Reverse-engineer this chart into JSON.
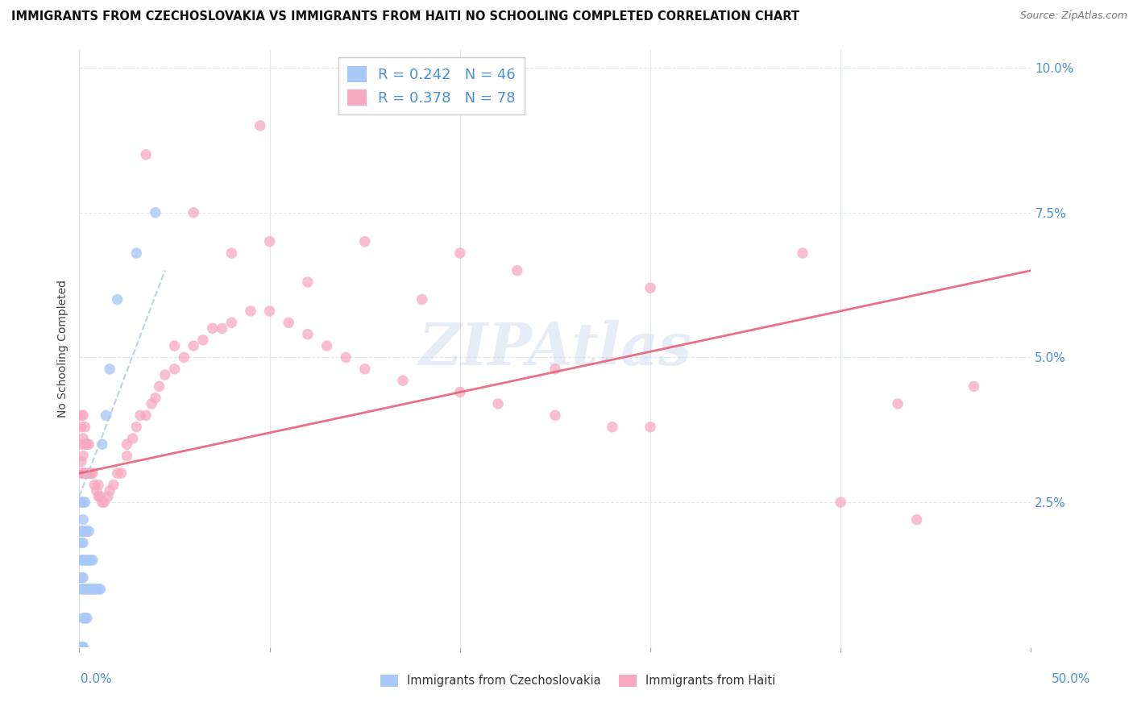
{
  "title": "IMMIGRANTS FROM CZECHOSLOVAKIA VS IMMIGRANTS FROM HAITI NO SCHOOLING COMPLETED CORRELATION CHART",
  "source": "Source: ZipAtlas.com",
  "ylabel": "No Schooling Completed",
  "ytick_positions": [
    0.0,
    0.025,
    0.05,
    0.075,
    0.1
  ],
  "ytick_labels": [
    "",
    "2.5%",
    "5.0%",
    "7.5%",
    "10.0%"
  ],
  "xtick_positions": [
    0.0,
    0.1,
    0.2,
    0.3,
    0.4,
    0.5
  ],
  "xlim": [
    0.0,
    0.5
  ],
  "ylim": [
    0.0,
    0.103
  ],
  "watermark": "ZIPAtlas",
  "legend_label1": "R = 0.242   N = 46",
  "legend_label2": "R = 0.378   N = 78",
  "color_czech": "#a8c8f8",
  "color_haiti": "#f8a8c0",
  "color_czech_line": "#b0c8e8",
  "color_haiti_line": "#e8607a",
  "color_text_blue": "#4a90d9",
  "color_axis_blue": "#4a90d9",
  "background_color": "#ffffff",
  "grid_color": "#dde8f0",
  "title_fontsize": 10.5,
  "axis_label_fontsize": 10,
  "tick_fontsize": 11,
  "legend_fontsize": 13,
  "watermark_fontsize": 52,
  "source_fontsize": 9,
  "scatter_size": 95,
  "czech_x": [
    0.001,
    0.001,
    0.001,
    0.001,
    0.001,
    0.001,
    0.001,
    0.001,
    0.001,
    0.001,
    0.002,
    0.002,
    0.002,
    0.002,
    0.002,
    0.002,
    0.002,
    0.002,
    0.002,
    0.002,
    0.003,
    0.003,
    0.003,
    0.003,
    0.003,
    0.004,
    0.004,
    0.004,
    0.004,
    0.005,
    0.005,
    0.005,
    0.006,
    0.006,
    0.007,
    0.007,
    0.008,
    0.009,
    0.01,
    0.011,
    0.012,
    0.014,
    0.016,
    0.02,
    0.03,
    0.04
  ],
  "czech_y": [
    0.0,
    0.0,
    0.0,
    0.0,
    0.01,
    0.012,
    0.015,
    0.018,
    0.02,
    0.025,
    0.0,
    0.0,
    0.005,
    0.01,
    0.012,
    0.015,
    0.018,
    0.02,
    0.022,
    0.025,
    0.005,
    0.01,
    0.015,
    0.02,
    0.025,
    0.005,
    0.01,
    0.015,
    0.02,
    0.01,
    0.015,
    0.02,
    0.01,
    0.015,
    0.01,
    0.015,
    0.01,
    0.01,
    0.01,
    0.01,
    0.035,
    0.04,
    0.048,
    0.06,
    0.068,
    0.075
  ],
  "haiti_x": [
    0.001,
    0.001,
    0.001,
    0.001,
    0.001,
    0.002,
    0.002,
    0.002,
    0.002,
    0.003,
    0.003,
    0.003,
    0.004,
    0.004,
    0.005,
    0.005,
    0.006,
    0.007,
    0.008,
    0.009,
    0.01,
    0.01,
    0.011,
    0.012,
    0.013,
    0.015,
    0.016,
    0.018,
    0.02,
    0.022,
    0.025,
    0.025,
    0.028,
    0.03,
    0.032,
    0.035,
    0.038,
    0.04,
    0.042,
    0.045,
    0.05,
    0.055,
    0.06,
    0.065,
    0.07,
    0.075,
    0.08,
    0.09,
    0.1,
    0.11,
    0.12,
    0.13,
    0.14,
    0.15,
    0.17,
    0.2,
    0.22,
    0.25,
    0.28,
    0.3,
    0.035,
    0.06,
    0.08,
    0.095,
    0.15,
    0.2,
    0.23,
    0.3,
    0.38,
    0.43,
    0.05,
    0.1,
    0.12,
    0.18,
    0.25,
    0.4,
    0.44,
    0.47
  ],
  "haiti_y": [
    0.03,
    0.032,
    0.035,
    0.038,
    0.04,
    0.03,
    0.033,
    0.036,
    0.04,
    0.03,
    0.035,
    0.038,
    0.03,
    0.035,
    0.03,
    0.035,
    0.03,
    0.03,
    0.028,
    0.027,
    0.026,
    0.028,
    0.026,
    0.025,
    0.025,
    0.026,
    0.027,
    0.028,
    0.03,
    0.03,
    0.033,
    0.035,
    0.036,
    0.038,
    0.04,
    0.04,
    0.042,
    0.043,
    0.045,
    0.047,
    0.048,
    0.05,
    0.052,
    0.053,
    0.055,
    0.055,
    0.056,
    0.058,
    0.058,
    0.056,
    0.054,
    0.052,
    0.05,
    0.048,
    0.046,
    0.044,
    0.042,
    0.04,
    0.038,
    0.038,
    0.085,
    0.075,
    0.068,
    0.09,
    0.07,
    0.068,
    0.065,
    0.062,
    0.068,
    0.042,
    0.052,
    0.07,
    0.063,
    0.06,
    0.048,
    0.025,
    0.022,
    0.045
  ],
  "haiti_trendline_x": [
    0.0,
    0.5
  ],
  "haiti_trendline_y": [
    0.03,
    0.065
  ],
  "czech_trendline_x": [
    0.0,
    0.045
  ],
  "czech_trendline_y": [
    0.026,
    0.065
  ]
}
